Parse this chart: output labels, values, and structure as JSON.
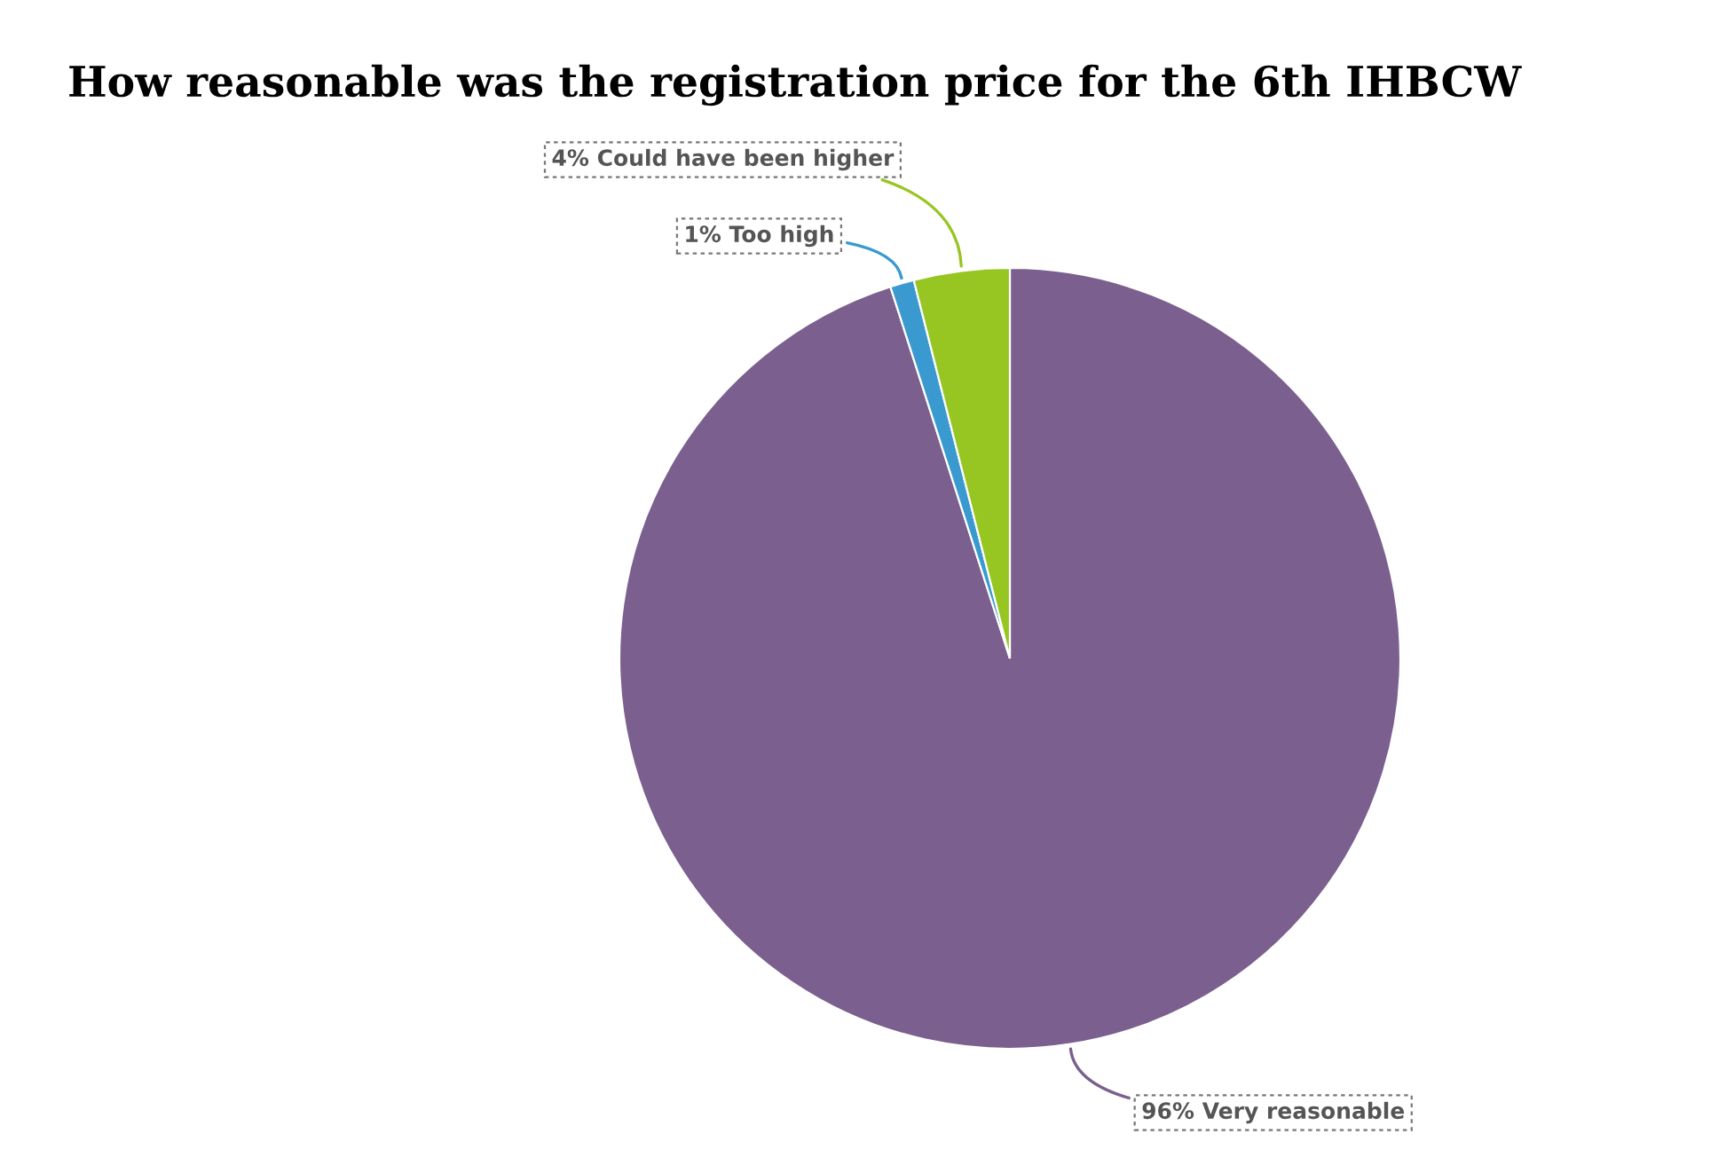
{
  "chart_data": {
    "type": "pie",
    "title": "How reasonable was the registration price for the 6th IHBCW",
    "categories": [
      "Very reasonable",
      "Too high",
      "Could have been higher"
    ],
    "values": [
      96,
      1,
      4
    ],
    "colors": [
      "#7b5f8e",
      "#3a9ad0",
      "#97c623"
    ],
    "value_labels": [
      "96%",
      "1%",
      "4%"
    ],
    "legend": false
  }
}
